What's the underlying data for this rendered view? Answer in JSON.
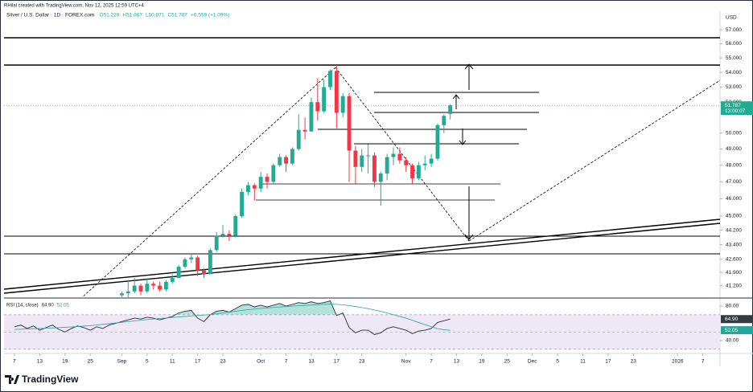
{
  "header": {
    "attribution": "RHilal created with TradingView.com, Nov 12, 2025 12:59 UTC+4"
  },
  "footer": {
    "brand": "TradingView"
  },
  "chart_data": [
    {
      "type": "candlestick",
      "title": "Silver / U.S. Dollar · 1D · FOREX.com",
      "ohlc_legend": [
        "O51.228",
        "H51.867",
        "L50.871",
        "C51.787",
        "+0.559 (+1.09%)"
      ],
      "currency": "USD",
      "countdown": "13:00:07",
      "log_scale": true,
      "grid": false,
      "up_color": "#22ab94",
      "down_color": "#f23645",
      "xlim": [
        -1.656,
        111.72
      ],
      "ylim": [
        40.6,
        58
      ],
      "yticks": [
        {
          "value": 57,
          "label": "57.000"
        },
        {
          "value": 56,
          "label": "56.000"
        },
        {
          "value": 55,
          "label": "55.000"
        },
        {
          "value": 54,
          "label": "54.000"
        },
        {
          "value": 53,
          "label": "53.000"
        },
        {
          "value": 52,
          "label": "52.000"
        },
        {
          "value": 50,
          "label": "50.000"
        },
        {
          "value": 49,
          "label": "49.000"
        },
        {
          "value": 48,
          "label": "48.000"
        },
        {
          "value": 47,
          "label": "47.000"
        },
        {
          "value": 46,
          "label": "46.000"
        },
        {
          "value": 45,
          "label": "45.000"
        },
        {
          "value": 44.2,
          "label": "44.200"
        },
        {
          "value": 43.4,
          "label": "43.400"
        },
        {
          "value": 42.6,
          "label": "42.600"
        },
        {
          "value": 41.9,
          "label": "41.900"
        },
        {
          "value": 41.2,
          "label": "41.200"
        }
      ],
      "x": [
        17,
        18,
        19,
        20,
        21,
        22,
        23,
        24,
        25,
        26,
        27,
        28,
        29,
        30,
        31,
        32,
        33,
        34,
        35,
        36,
        37,
        38,
        39,
        40,
        41,
        42,
        43,
        44,
        45,
        46,
        47,
        48,
        49,
        50,
        51,
        52,
        53,
        54,
        55,
        56,
        57,
        58,
        59,
        60,
        61,
        62,
        63,
        64,
        65,
        66,
        67,
        68,
        69
      ],
      "open": [
        40.7,
        40.8,
        40.9,
        41.2,
        40.9,
        41.3,
        41.2,
        41.0,
        41.4,
        41.6,
        42.2,
        42.6,
        42.7,
        42.0,
        41.8,
        43.1,
        43.9,
        44.0,
        43.9,
        45.0,
        46.4,
        46.8,
        46.6,
        47.3,
        47.0,
        48.0,
        48.5,
        48.1,
        49.0,
        50.2,
        50.1,
        52.0,
        51.4,
        53.0,
        54.1,
        51.3,
        52.4,
        48.9,
        47.9,
        48.6,
        48.6,
        47.0,
        47.5,
        48.5,
        48.7,
        48.3,
        48.0,
        47.2,
        48.0,
        48.1,
        48.4,
        50.5,
        51.228
      ],
      "high": [
        40.9,
        41.5,
        41.6,
        41.3,
        41.6,
        41.4,
        41.4,
        41.5,
        41.8,
        42.3,
        42.7,
        42.9,
        42.8,
        42.1,
        43.2,
        44.1,
        44.5,
        44.2,
        45.1,
        46.6,
        47.0,
        46.9,
        47.6,
        47.5,
        48.1,
        48.7,
        48.6,
        49.1,
        51.2,
        51.0,
        52.3,
        53.6,
        53.5,
        54.2,
        54.5,
        52.6,
        52.6,
        49.2,
        49.0,
        49.3,
        48.8,
        47.6,
        48.7,
        49.1,
        49.1,
        48.5,
        48.1,
        48.2,
        48.6,
        48.7,
        50.6,
        51.2,
        51.867
      ],
      "low": [
        40.4,
        40.6,
        40.8,
        40.7,
        40.8,
        41.0,
        40.9,
        40.9,
        41.3,
        41.6,
        42.1,
        42.4,
        41.7,
        41.6,
        41.8,
        43.0,
        43.8,
        43.6,
        43.8,
        44.9,
        46.2,
        45.9,
        46.4,
        46.6,
        46.9,
        47.9,
        47.6,
        48.0,
        48.9,
        49.6,
        50.1,
        50.8,
        51.3,
        52.8,
        50.3,
        51.0,
        47.0,
        46.9,
        47.6,
        47.5,
        46.7,
        45.6,
        47.1,
        48.0,
        48.1,
        47.6,
        46.9,
        47.1,
        47.7,
        47.9,
        48.3,
        50.0,
        50.871
      ],
      "close": [
        40.8,
        40.9,
        41.2,
        40.9,
        41.3,
        41.2,
        41.0,
        41.4,
        41.6,
        42.2,
        42.6,
        42.7,
        42.0,
        41.8,
        43.1,
        43.9,
        44.0,
        43.9,
        45.0,
        46.4,
        46.8,
        46.6,
        47.3,
        47.0,
        48.0,
        48.5,
        48.1,
        49.0,
        50.2,
        50.1,
        52.0,
        51.4,
        53.0,
        54.1,
        51.3,
        52.4,
        48.9,
        47.9,
        48.6,
        48.6,
        47.0,
        47.5,
        48.5,
        48.7,
        48.3,
        48.0,
        47.2,
        48.0,
        48.1,
        48.4,
        50.5,
        51.1,
        51.787
      ]
    },
    {
      "type": "line",
      "title": "RSI (14, close)",
      "grid": false,
      "band_color": "#ede7f6",
      "levels": [
        70,
        50,
        30
      ],
      "xlim": [
        -1.656,
        111.72
      ],
      "ylim": [
        25.1,
        88.4
      ],
      "yticks": [
        {
          "value": 80,
          "label": "80.00"
        },
        {
          "value": 40,
          "label": "40.00"
        }
      ],
      "xticks": [
        {
          "value": 0,
          "label": "7"
        },
        {
          "value": 4,
          "label": "13"
        },
        {
          "value": 8,
          "label": "19"
        },
        {
          "value": 12,
          "label": "25"
        },
        {
          "value": 17,
          "label": "Sep"
        },
        {
          "value": 21,
          "label": "5"
        },
        {
          "value": 25,
          "label": "11"
        },
        {
          "value": 29,
          "label": "17"
        },
        {
          "value": 33,
          "label": "23"
        },
        {
          "value": 39,
          "label": "Oct"
        },
        {
          "value": 43,
          "label": "7"
        },
        {
          "value": 47,
          "label": "13"
        },
        {
          "value": 51,
          "label": "17"
        },
        {
          "value": 55,
          "label": "23"
        },
        {
          "value": 62,
          "label": "Nov"
        },
        {
          "value": 66,
          "label": "7"
        },
        {
          "value": 70,
          "label": "13"
        },
        {
          "value": 74,
          "label": "19"
        },
        {
          "value": 78,
          "label": "25"
        },
        {
          "value": 82,
          "label": "Dec"
        },
        {
          "value": 86,
          "label": "5"
        },
        {
          "value": 90,
          "label": "11"
        },
        {
          "value": 94,
          "label": "17"
        },
        {
          "value": 98,
          "label": "23"
        },
        {
          "value": 105,
          "label": "2026"
        },
        {
          "value": 109,
          "label": "7"
        }
      ],
      "x": [
        0,
        1,
        2,
        3,
        4,
        5,
        6,
        7,
        8,
        9,
        10,
        11,
        12,
        13,
        14,
        15,
        16,
        17,
        18,
        19,
        20,
        21,
        22,
        23,
        24,
        25,
        26,
        27,
        28,
        29,
        30,
        31,
        32,
        33,
        34,
        35,
        36,
        37,
        38,
        39,
        40,
        41,
        42,
        43,
        44,
        45,
        46,
        47,
        48,
        49,
        50,
        51,
        52,
        53,
        54,
        55,
        56,
        57,
        58,
        59,
        60,
        61,
        62,
        63,
        64,
        65,
        66,
        67,
        68,
        69
      ],
      "series": [
        {
          "color": "#2a2e39",
          "value_label": "64.90",
          "label_color": "#363a45",
          "values": [
            56,
            58,
            54,
            57,
            52,
            55,
            58,
            53,
            50,
            54,
            57,
            55,
            52,
            56,
            54,
            58,
            60,
            62,
            64,
            66,
            65,
            67,
            66,
            64,
            66,
            68,
            72,
            74,
            75,
            66,
            62,
            70,
            74,
            75,
            73,
            77,
            81,
            82,
            79,
            81,
            79,
            81,
            83,
            80,
            82,
            84,
            83,
            85,
            83,
            84,
            86,
            69,
            72,
            55,
            49,
            52,
            52,
            47,
            49,
            54,
            56,
            54,
            52,
            48,
            51,
            52,
            54,
            61,
            63,
            64.9
          ]
        },
        {
          "color": "#26a69a",
          "value_label": "52.05",
          "label_color": "#26a69a",
          "values": [
            53,
            53.2,
            53.5,
            53.8,
            54,
            54.3,
            54.6,
            55,
            55.4,
            55.8,
            56.3,
            56.8,
            57.3,
            58,
            58.8,
            59.6,
            60.4,
            61.2,
            62,
            62.8,
            63.6,
            64.3,
            65,
            65.6,
            66.2,
            66.8,
            67.4,
            68,
            68.6,
            69.2,
            69.6,
            70.2,
            71,
            72,
            73,
            74,
            75,
            75.8,
            76.5,
            77.2,
            77.8,
            78.4,
            79,
            79.5,
            80,
            80.4,
            80.8,
            81.2,
            81.6,
            82,
            82.3,
            82,
            81.5,
            80.5,
            79.5,
            78.3,
            77,
            75.5,
            74,
            72,
            70,
            68,
            66,
            63.5,
            61,
            58.5,
            56,
            53.8,
            52.5,
            52.05
          ]
        }
      ]
    }
  ]
}
